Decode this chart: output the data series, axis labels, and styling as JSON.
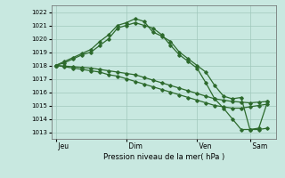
{
  "background_color": "#c8e8e0",
  "grid_color": "#a0c8bc",
  "line_color": "#2d6a2d",
  "ylim": [
    1012.5,
    1022.5
  ],
  "yticks": [
    1013,
    1014,
    1015,
    1016,
    1017,
    1018,
    1019,
    1020,
    1021,
    1022
  ],
  "xlabel": "Pression niveau de la mer( hPa )",
  "day_labels": [
    " Jeu",
    " Dim",
    " Ven",
    " Sam"
  ],
  "day_positions": [
    0,
    8,
    16,
    22
  ],
  "xlim": [
    -0.5,
    25
  ],
  "line1_x": [
    0,
    1,
    2,
    3,
    4,
    5,
    6,
    7,
    8,
    9,
    10,
    11,
    12,
    13,
    14,
    15,
    16,
    17,
    18,
    19,
    20,
    21,
    22,
    23,
    24
  ],
  "line1_y": [
    1018.0,
    1017.95,
    1017.9,
    1017.85,
    1017.8,
    1017.7,
    1017.6,
    1017.5,
    1017.4,
    1017.3,
    1017.1,
    1016.9,
    1016.7,
    1016.5,
    1016.3,
    1016.1,
    1015.9,
    1015.7,
    1015.5,
    1015.4,
    1015.3,
    1015.25,
    1015.2,
    1015.25,
    1015.3
  ],
  "line2_x": [
    0,
    1,
    2,
    3,
    4,
    5,
    6,
    7,
    8,
    9,
    10,
    11,
    12,
    13,
    14,
    15,
    16,
    17,
    18,
    19,
    20,
    21,
    22,
    23,
    24
  ],
  "line2_y": [
    1018.0,
    1017.9,
    1017.8,
    1017.7,
    1017.6,
    1017.5,
    1017.3,
    1017.2,
    1017.0,
    1016.8,
    1016.6,
    1016.4,
    1016.2,
    1016.0,
    1015.8,
    1015.6,
    1015.4,
    1015.2,
    1015.0,
    1014.9,
    1014.8,
    1014.8,
    1014.9,
    1015.0,
    1015.1
  ],
  "line3_x": [
    0,
    1,
    2,
    3,
    4,
    5,
    6,
    7,
    8,
    9,
    10,
    11,
    12,
    13,
    14,
    15,
    16,
    17,
    18,
    19,
    20,
    21,
    22,
    23,
    24
  ],
  "line3_y": [
    1018.0,
    1018.3,
    1018.6,
    1018.9,
    1019.2,
    1019.8,
    1020.3,
    1021.0,
    1021.2,
    1021.5,
    1021.3,
    1020.5,
    1020.2,
    1019.8,
    1019.0,
    1018.5,
    1018.0,
    1017.5,
    1016.5,
    1015.7,
    1015.5,
    1015.6,
    1013.2,
    1013.2,
    1013.3
  ],
  "line4_x": [
    0,
    1,
    2,
    3,
    4,
    5,
    6,
    7,
    8,
    9,
    10,
    11,
    12,
    13,
    14,
    15,
    16,
    17,
    18,
    19,
    20,
    21,
    22,
    23,
    24
  ],
  "line4_y": [
    1018.0,
    1018.2,
    1018.5,
    1018.8,
    1019.0,
    1019.5,
    1020.0,
    1020.8,
    1021.0,
    1021.2,
    1021.0,
    1020.8,
    1020.3,
    1019.5,
    1018.8,
    1018.3,
    1017.8,
    1016.7,
    1015.5,
    1014.8,
    1014.0,
    1013.2,
    1013.2,
    1013.3,
    1015.3
  ]
}
